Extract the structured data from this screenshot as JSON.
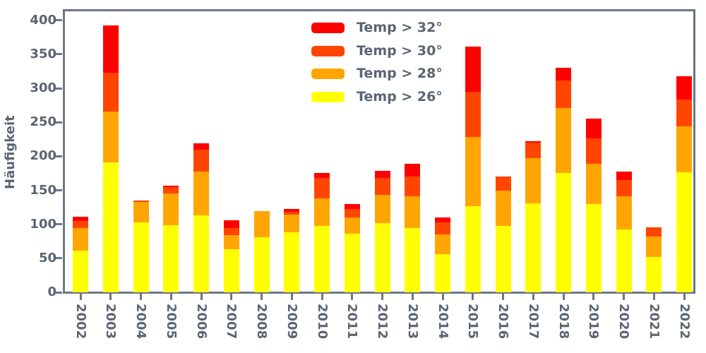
{
  "chart_data": {
    "type": "bar",
    "stacked": true,
    "title": "",
    "xlabel": "",
    "ylabel": "Häufigkeit",
    "ylim": [
      0,
      400
    ],
    "yticks": [
      0,
      50,
      100,
      150,
      200,
      250,
      300,
      350,
      400
    ],
    "grid": false,
    "legend_position": "upper center",
    "legend_order_top_to_bottom": [
      "Temp > 32°",
      "Temp > 30°",
      "Temp > 28°",
      "Temp > 26°"
    ],
    "categories": [
      "2002",
      "2003",
      "2004",
      "2005",
      "2006",
      "2007",
      "2008",
      "2009",
      "2010",
      "2011",
      "2012",
      "2013",
      "2014",
      "2015",
      "2016",
      "2017",
      "2018",
      "2019",
      "2020",
      "2021",
      "2022"
    ],
    "series": [
      {
        "name": "Temp > 26°",
        "color": "#ffff00",
        "values": [
          61,
          191,
          103,
          99,
          113,
          63,
          81,
          88,
          98,
          86,
          102,
          94,
          56,
          127,
          98,
          131,
          176,
          130,
          92,
          52,
          177
        ]
      },
      {
        "name": "Temp > 28°",
        "color": "#ffa500",
        "values": [
          33,
          75,
          30,
          46,
          65,
          21,
          38,
          26,
          40,
          24,
          41,
          47,
          29,
          101,
          52,
          66,
          95,
          59,
          49,
          30,
          67
        ]
      },
      {
        "name": "Temp > 30°",
        "color": "#ff4500",
        "values": [
          11,
          57,
          2,
          10,
          32,
          11,
          0,
          4,
          30,
          13,
          25,
          29,
          18,
          67,
          20,
          23,
          41,
          37,
          24,
          14,
          39
        ]
      },
      {
        "name": "Temp > 32°",
        "color": "#ff0000",
        "values": [
          6,
          70,
          0,
          2,
          9,
          11,
          0,
          5,
          8,
          7,
          11,
          19,
          7,
          66,
          0,
          2,
          18,
          29,
          13,
          0,
          35
        ]
      }
    ]
  },
  "style": {
    "background": "#ffffff",
    "text_color": "#5b6472",
    "axis_color": "#6e7686"
  }
}
